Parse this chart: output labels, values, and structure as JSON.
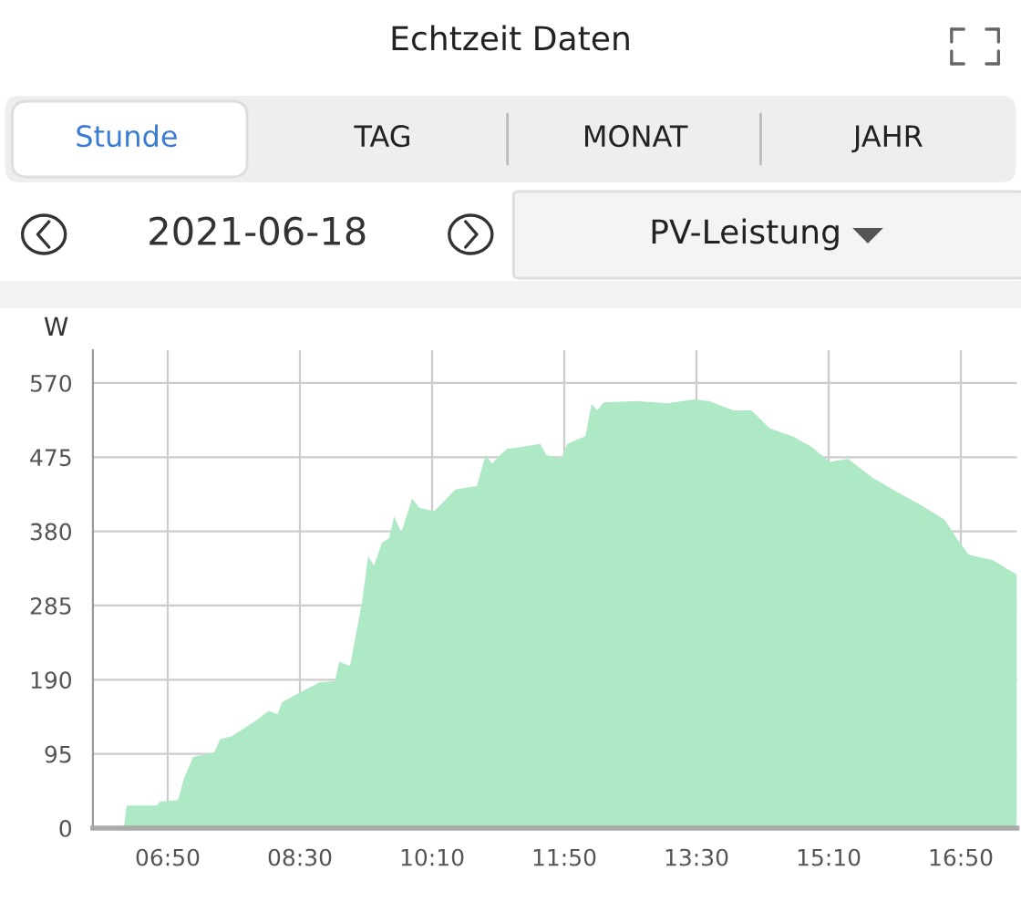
{
  "chart_data": {
    "type": "area",
    "title": "Echtzeit Daten",
    "ylabel": "W",
    "annotations": [
      "Stunde",
      "TAG",
      "MONAT",
      "JAHR",
      "2021-06-18",
      "PV-Leistung"
    ],
    "x": [
      5.897,
      6.278,
      6.316,
      6.696,
      6.734,
      6.963,
      7.039,
      7.153,
      7.419,
      7.495,
      7.648,
      7.952,
      8.104,
      8.219,
      8.272,
      8.485,
      8.751,
      8.941,
      8.995,
      9.132,
      9.284,
      9.36,
      9.436,
      9.535,
      9.626,
      9.687,
      9.779,
      9.915,
      10.007,
      10.197,
      10.311,
      10.463,
      10.73,
      10.844,
      10.92,
      11.11,
      11.148,
      11.529,
      11.605,
      11.795,
      11.871,
      12.1,
      12.176,
      12.252,
      12.328,
      12.747,
      13.127,
      13.47,
      13.66,
      13.964,
      14.192,
      14.421,
      14.725,
      14.953,
      15.182,
      15.411,
      15.715,
      16.019,
      16.324,
      16.628,
      16.78,
      16.932,
      17.237,
      17.465,
      17.54
    ],
    "series": [
      {
        "color": "#aee9c6",
        "values": [
          0,
          0,
          29,
          29,
          34,
          36,
          64,
          91,
          97,
          114,
          118,
          138,
          150,
          146,
          161,
          173,
          187,
          188,
          213,
          208,
          290,
          348,
          336,
          366,
          371,
          399,
          379,
          422,
          410,
          406,
          418,
          434,
          438,
          478,
          467,
          486,
          486,
          492,
          478,
          473,
          492,
          502,
          543,
          535,
          545,
          547,
          544,
          549,
          547,
          535,
          535,
          512,
          501,
          488,
          469,
          473,
          449,
          431,
          414,
          395,
          371,
          350,
          343,
          329,
          325
        ]
      }
    ],
    "xlim": [
      5.89,
      17.54
    ],
    "ylim": [
      0,
      612
    ],
    "xticks": [
      {
        "value": 6.833,
        "label": "06:50"
      },
      {
        "value": 8.5,
        "label": "08:30"
      },
      {
        "value": 10.167,
        "label": "10:10"
      },
      {
        "value": 11.833,
        "label": "11:50"
      },
      {
        "value": 13.5,
        "label": "13:30"
      },
      {
        "value": 15.167,
        "label": "15:10"
      },
      {
        "value": 16.833,
        "label": "16:50"
      }
    ],
    "yticks": [
      0,
      95,
      190,
      285,
      380,
      475,
      570
    ],
    "grid": true
  }
}
